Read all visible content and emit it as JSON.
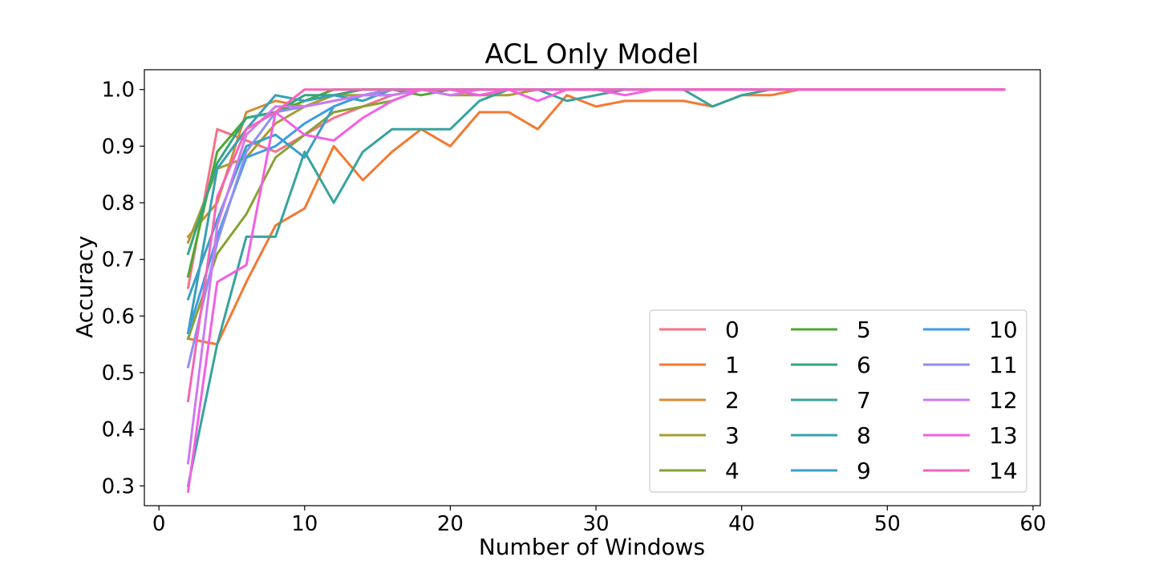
{
  "chart_data": {
    "type": "line",
    "title": "ACL Only Model",
    "xlabel": "Number of Windows",
    "ylabel": "Accuracy",
    "xlim": [
      -1,
      60.5
    ],
    "ylim": [
      0.265,
      1.035
    ],
    "xticks": [
      0,
      10,
      20,
      30,
      40,
      50,
      60
    ],
    "yticks": [
      0.3,
      0.4,
      0.5,
      0.6,
      0.7,
      0.8,
      0.9,
      1.0
    ],
    "ytick_labels": [
      "0.3",
      "0.4",
      "0.5",
      "0.6",
      "0.7",
      "0.8",
      "0.9",
      "1.0"
    ],
    "grid": false,
    "legend_position": "lower-right",
    "legend_columns": 3,
    "x": [
      2,
      4,
      6,
      8,
      10,
      12,
      14,
      16,
      18,
      20,
      22,
      24,
      26,
      28,
      30,
      32,
      34,
      36,
      38,
      40,
      42,
      44,
      46,
      48,
      50,
      52,
      54,
      56,
      58
    ],
    "series": [
      {
        "name": "0",
        "color": "#f77189",
        "values": [
          0.65,
          0.93,
          0.91,
          0.89,
          0.92,
          0.95,
          0.97,
          0.99,
          1.0,
          1.0,
          1.0,
          1.0,
          1.0,
          1.0,
          1.0,
          1.0,
          1.0,
          1.0,
          1.0,
          1.0,
          1.0,
          1.0,
          1.0,
          1.0,
          1.0,
          1.0,
          1.0,
          1.0,
          1.0
        ]
      },
      {
        "name": "1",
        "color": "#f37932",
        "values": [
          0.56,
          0.55,
          0.66,
          0.76,
          0.79,
          0.9,
          0.84,
          0.89,
          0.93,
          0.9,
          0.96,
          0.96,
          0.93,
          0.99,
          0.97,
          0.98,
          0.98,
          0.98,
          0.97,
          0.99,
          0.99,
          1.0,
          1.0,
          1.0,
          1.0,
          1.0,
          1.0,
          1.0,
          1.0
        ]
      },
      {
        "name": "2",
        "color": "#d58c32",
        "values": [
          0.74,
          0.8,
          0.96,
          0.98,
          0.97,
          0.99,
          1.0,
          1.0,
          1.0,
          1.0,
          1.0,
          1.0,
          1.0,
          1.0,
          1.0,
          1.0,
          1.0,
          1.0,
          1.0,
          1.0,
          1.0,
          1.0,
          1.0,
          1.0,
          1.0,
          1.0,
          1.0,
          1.0,
          1.0
        ]
      },
      {
        "name": "3",
        "color": "#a89d32",
        "values": [
          0.73,
          0.86,
          0.88,
          0.94,
          0.97,
          0.99,
          0.99,
          1.0,
          1.0,
          0.99,
          0.99,
          0.99,
          1.0,
          1.0,
          1.0,
          1.0,
          1.0,
          1.0,
          1.0,
          1.0,
          1.0,
          1.0,
          1.0,
          1.0,
          1.0,
          1.0,
          1.0,
          1.0,
          1.0
        ]
      },
      {
        "name": "4",
        "color": "#86a333",
        "values": [
          0.56,
          0.71,
          0.78,
          0.88,
          0.92,
          0.96,
          0.97,
          0.98,
          1.0,
          1.0,
          1.0,
          1.0,
          1.0,
          1.0,
          1.0,
          1.0,
          1.0,
          1.0,
          1.0,
          1.0,
          1.0,
          1.0,
          1.0,
          1.0,
          1.0,
          1.0,
          1.0,
          1.0,
          1.0
        ]
      },
      {
        "name": "5",
        "color": "#4fa832",
        "values": [
          0.67,
          0.89,
          0.95,
          0.96,
          0.98,
          1.0,
          1.0,
          1.0,
          0.99,
          1.0,
          1.0,
          1.0,
          1.0,
          1.0,
          1.0,
          1.0,
          1.0,
          1.0,
          1.0,
          1.0,
          1.0,
          1.0,
          1.0,
          1.0,
          1.0,
          1.0,
          1.0,
          1.0,
          1.0
        ]
      },
      {
        "name": "6",
        "color": "#35a67f",
        "values": [
          0.71,
          0.87,
          0.95,
          0.96,
          0.99,
          0.99,
          1.0,
          1.0,
          1.0,
          1.0,
          1.0,
          1.0,
          1.0,
          1.0,
          1.0,
          1.0,
          1.0,
          1.0,
          1.0,
          1.0,
          1.0,
          1.0,
          1.0,
          1.0,
          1.0,
          1.0,
          1.0,
          1.0,
          1.0
        ]
      },
      {
        "name": "7",
        "color": "#37a39e",
        "values": [
          0.3,
          0.55,
          0.74,
          0.74,
          0.89,
          0.8,
          0.89,
          0.93,
          0.93,
          0.93,
          0.98,
          1.0,
          1.0,
          0.98,
          0.99,
          1.0,
          1.0,
          1.0,
          0.97,
          0.99,
          1.0,
          1.0,
          1.0,
          1.0,
          1.0,
          1.0,
          1.0,
          1.0,
          1.0
        ]
      },
      {
        "name": "8",
        "color": "#38a1b3",
        "values": [
          0.57,
          0.86,
          0.93,
          0.99,
          0.98,
          0.99,
          0.98,
          1.0,
          1.0,
          1.0,
          1.0,
          1.0,
          1.0,
          1.0,
          1.0,
          1.0,
          1.0,
          1.0,
          1.0,
          1.0,
          1.0,
          1.0,
          1.0,
          1.0,
          1.0,
          1.0,
          1.0,
          1.0,
          1.0
        ]
      },
      {
        "name": "9",
        "color": "#3aa0c4",
        "values": [
          0.63,
          0.77,
          0.9,
          0.92,
          0.88,
          0.97,
          0.99,
          1.0,
          1.0,
          1.0,
          0.99,
          1.0,
          1.0,
          1.0,
          1.0,
          1.0,
          1.0,
          1.0,
          1.0,
          1.0,
          1.0,
          1.0,
          1.0,
          1.0,
          1.0,
          1.0,
          1.0,
          1.0,
          1.0
        ]
      },
      {
        "name": "10",
        "color": "#3e9ce8",
        "values": [
          0.57,
          0.74,
          0.88,
          0.9,
          0.94,
          0.97,
          0.99,
          0.99,
          1.0,
          1.0,
          1.0,
          1.0,
          1.0,
          1.0,
          1.0,
          1.0,
          1.0,
          1.0,
          1.0,
          1.0,
          1.0,
          1.0,
          1.0,
          1.0,
          1.0,
          1.0,
          1.0,
          1.0,
          1.0
        ]
      },
      {
        "name": "11",
        "color": "#8f8ff2",
        "values": [
          0.51,
          0.73,
          0.89,
          0.96,
          0.97,
          0.98,
          0.99,
          1.0,
          1.0,
          1.0,
          1.0,
          1.0,
          1.0,
          1.0,
          1.0,
          1.0,
          1.0,
          1.0,
          1.0,
          1.0,
          1.0,
          1.0,
          1.0,
          1.0,
          1.0,
          1.0,
          1.0,
          1.0,
          1.0
        ]
      },
      {
        "name": "12",
        "color": "#cc7af4",
        "values": [
          0.34,
          0.76,
          0.92,
          0.97,
          0.97,
          0.98,
          0.99,
          0.99,
          1.0,
          0.99,
          1.0,
          1.0,
          1.0,
          1.0,
          1.0,
          1.0,
          1.0,
          1.0,
          1.0,
          1.0,
          1.0,
          1.0,
          1.0,
          1.0,
          1.0,
          1.0,
          1.0,
          1.0,
          1.0
        ]
      },
      {
        "name": "13",
        "color": "#f45fe3",
        "values": [
          0.29,
          0.66,
          0.69,
          0.96,
          0.92,
          0.91,
          0.95,
          0.98,
          1.0,
          1.0,
          0.99,
          1.0,
          0.98,
          1.0,
          1.0,
          0.99,
          1.0,
          1.0,
          1.0,
          1.0,
          1.0,
          1.0,
          1.0,
          1.0,
          1.0,
          1.0,
          1.0,
          1.0,
          1.0
        ]
      },
      {
        "name": "14",
        "color": "#f565b8",
        "values": [
          0.45,
          0.81,
          0.93,
          0.96,
          1.0,
          1.0,
          1.0,
          1.0,
          1.0,
          1.0,
          1.0,
          1.0,
          1.0,
          1.0,
          1.0,
          1.0,
          1.0,
          1.0,
          1.0,
          1.0,
          1.0,
          1.0,
          1.0,
          1.0,
          1.0,
          1.0,
          1.0,
          1.0,
          1.0
        ]
      }
    ]
  }
}
